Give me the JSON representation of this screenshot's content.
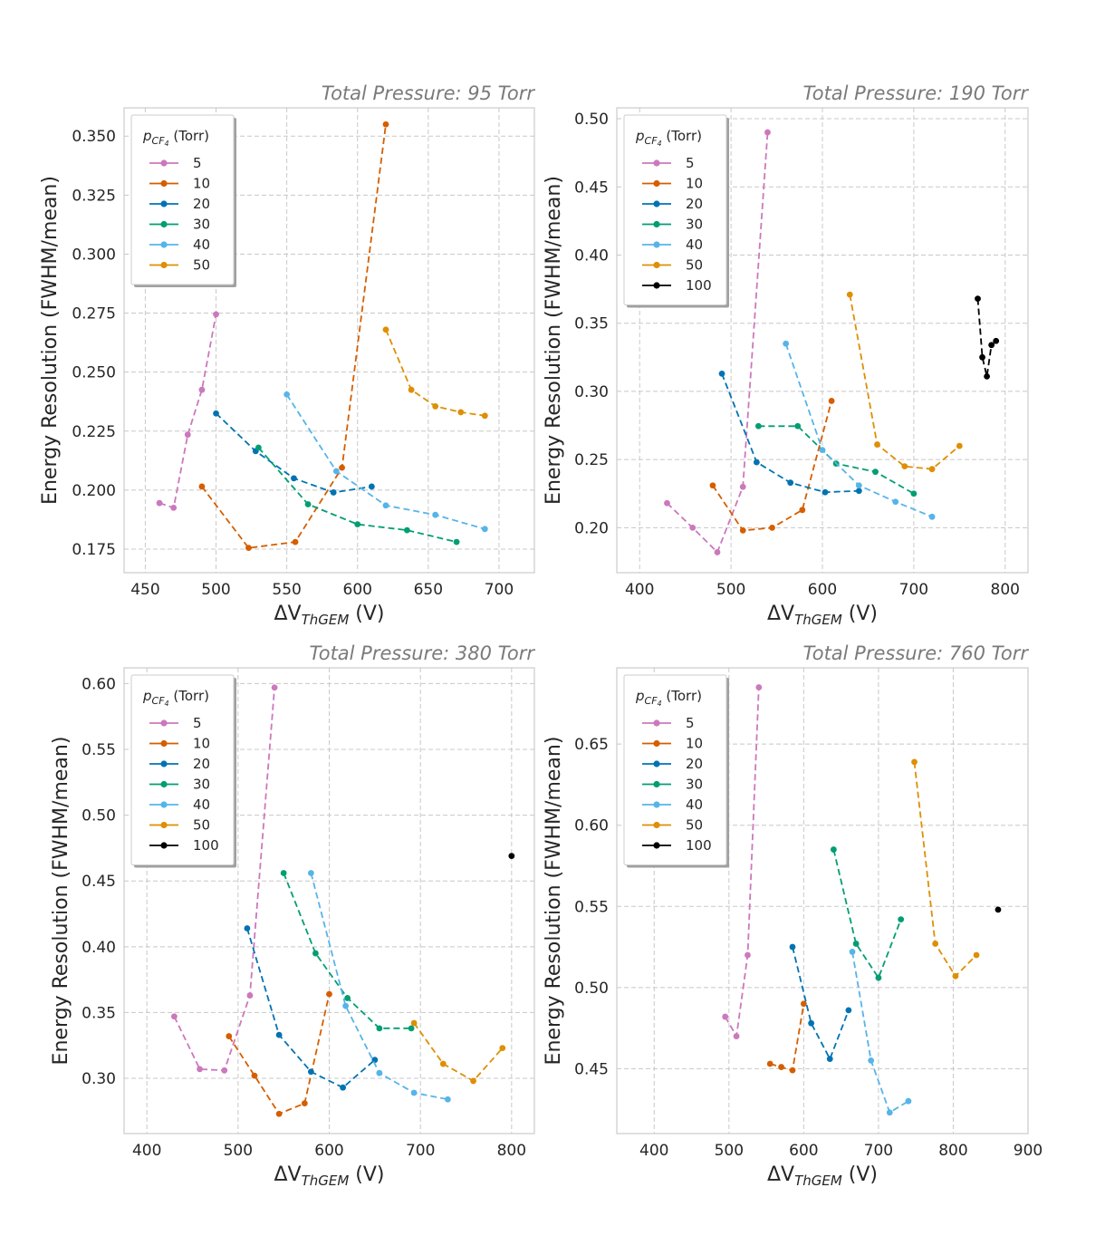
{
  "chart_data": [
    {
      "type": "line",
      "title": "Total Pressure: 95 Torr",
      "xlabel": "ΔV",
      "xlabel_sub": "ThGEM",
      "xlabel_unit": " (V)",
      "ylabel": "Energy Resolution (FWHM/mean)",
      "xlim": [
        435,
        725
      ],
      "ylim": [
        0.165,
        0.362
      ],
      "xticks": [
        450,
        500,
        550,
        600,
        650,
        700
      ],
      "yticks": [
        0.175,
        0.2,
        0.225,
        0.25,
        0.275,
        0.3,
        0.325,
        0.35
      ],
      "ytick_labels": [
        "0.175",
        "0.200",
        "0.225",
        "0.250",
        "0.275",
        "0.300",
        "0.325",
        "0.350"
      ],
      "legend_title": "p",
      "legend_title_sub": "CF",
      "legend_title_subsub": "4",
      "legend_title_unit": " (Torr)",
      "legend_location": "upper-left",
      "series": [
        {
          "name": "5",
          "color": "#cc78bc",
          "x": [
            460,
            470,
            480,
            490,
            500
          ],
          "y": [
            0.1945,
            0.1925,
            0.2235,
            0.2425,
            0.2745
          ]
        },
        {
          "name": "10",
          "color": "#d55e00",
          "x": [
            490,
            523,
            556,
            589,
            620
          ],
          "y": [
            0.2015,
            0.1755,
            0.178,
            0.2095,
            0.355
          ]
        },
        {
          "name": "20",
          "color": "#0173b2",
          "x": [
            500,
            528,
            555,
            583,
            610
          ],
          "y": [
            0.2325,
            0.2165,
            0.205,
            0.199,
            0.2015
          ]
        },
        {
          "name": "30",
          "color": "#029e73",
          "x": [
            530,
            565,
            600,
            635,
            670
          ],
          "y": [
            0.218,
            0.194,
            0.1855,
            0.183,
            0.178
          ]
        },
        {
          "name": "40",
          "color": "#56b4e9",
          "x": [
            550,
            585,
            620,
            655,
            690
          ],
          "y": [
            0.2405,
            0.208,
            0.1935,
            0.1895,
            0.1835
          ]
        },
        {
          "name": "50",
          "color": "#de8f05",
          "x": [
            620,
            638,
            655,
            673,
            690
          ],
          "y": [
            0.268,
            0.2425,
            0.2355,
            0.233,
            0.2315
          ]
        }
      ]
    },
    {
      "type": "line",
      "title": "Total Pressure: 190 Torr",
      "xlabel": "ΔV",
      "xlabel_sub": "ThGEM",
      "xlabel_unit": " (V)",
      "ylabel": "Energy Resolution (FWHM/mean)",
      "xlim": [
        375,
        825
      ],
      "ylim": [
        0.167,
        0.508
      ],
      "xticks": [
        400,
        500,
        600,
        700,
        800
      ],
      "yticks": [
        0.2,
        0.25,
        0.3,
        0.35,
        0.4,
        0.45,
        0.5
      ],
      "ytick_labels": [
        "0.20",
        "0.25",
        "0.30",
        "0.35",
        "0.40",
        "0.45",
        "0.50"
      ],
      "legend_title": "p",
      "legend_title_sub": "CF",
      "legend_title_subsub": "4",
      "legend_title_unit": " (Torr)",
      "legend_location": "upper-left",
      "series": [
        {
          "name": "5",
          "color": "#cc78bc",
          "x": [
            430,
            458,
            485,
            513,
            540
          ],
          "y": [
            0.218,
            0.2,
            0.182,
            0.23,
            0.49
          ]
        },
        {
          "name": "10",
          "color": "#d55e00",
          "x": [
            480,
            513,
            545,
            578,
            610
          ],
          "y": [
            0.231,
            0.198,
            0.2,
            0.213,
            0.293
          ]
        },
        {
          "name": "20",
          "color": "#0173b2",
          "x": [
            490,
            528,
            565,
            603,
            640
          ],
          "y": [
            0.313,
            0.248,
            0.233,
            0.226,
            0.227
          ]
        },
        {
          "name": "30",
          "color": "#029e73",
          "x": [
            530,
            573,
            615,
            658,
            700
          ],
          "y": [
            0.2745,
            0.2745,
            0.247,
            0.241,
            0.225
          ]
        },
        {
          "name": "40",
          "color": "#56b4e9",
          "x": [
            560,
            600,
            640,
            680,
            720
          ],
          "y": [
            0.335,
            0.257,
            0.231,
            0.219,
            0.208
          ]
        },
        {
          "name": "50",
          "color": "#de8f05",
          "x": [
            630,
            660,
            690,
            720,
            750
          ],
          "y": [
            0.371,
            0.261,
            0.245,
            0.243,
            0.26
          ]
        },
        {
          "name": "100",
          "color": "#000000",
          "x": [
            770,
            775,
            780,
            785,
            790
          ],
          "y": [
            0.368,
            0.325,
            0.311,
            0.334,
            0.337
          ]
        }
      ]
    },
    {
      "type": "line",
      "title": "Total Pressure: 380 Torr",
      "xlabel": "ΔV",
      "xlabel_sub": "ThGEM",
      "xlabel_unit": " (V)",
      "ylabel": "Energy Resolution (FWHM/mean)",
      "xlim": [
        375,
        825
      ],
      "ylim": [
        0.258,
        0.612
      ],
      "xticks": [
        400,
        500,
        600,
        700,
        800
      ],
      "yticks": [
        0.3,
        0.35,
        0.4,
        0.45,
        0.5,
        0.55,
        0.6
      ],
      "ytick_labels": [
        "0.30",
        "0.35",
        "0.40",
        "0.45",
        "0.50",
        "0.55",
        "0.60"
      ],
      "legend_title": "p",
      "legend_title_sub": "CF",
      "legend_title_subsub": "4",
      "legend_title_unit": " (Torr)",
      "legend_location": "upper-left",
      "series": [
        {
          "name": "5",
          "color": "#cc78bc",
          "x": [
            430,
            458,
            485,
            513,
            540
          ],
          "y": [
            0.347,
            0.307,
            0.306,
            0.363,
            0.597
          ]
        },
        {
          "name": "10",
          "color": "#d55e00",
          "x": [
            490,
            518,
            545,
            573,
            600
          ],
          "y": [
            0.332,
            0.302,
            0.273,
            0.281,
            0.364
          ]
        },
        {
          "name": "20",
          "color": "#0173b2",
          "x": [
            510,
            545,
            580,
            615,
            650
          ],
          "y": [
            0.414,
            0.333,
            0.305,
            0.293,
            0.314
          ]
        },
        {
          "name": "30",
          "color": "#029e73",
          "x": [
            550,
            585,
            620,
            655,
            690
          ],
          "y": [
            0.456,
            0.395,
            0.361,
            0.338,
            0.338
          ]
        },
        {
          "name": "40",
          "color": "#56b4e9",
          "x": [
            580,
            618,
            655,
            693,
            730
          ],
          "y": [
            0.456,
            0.355,
            0.304,
            0.289,
            0.284
          ]
        },
        {
          "name": "50",
          "color": "#de8f05",
          "x": [
            693,
            725,
            758,
            790
          ],
          "y": [
            0.342,
            0.311,
            0.298,
            0.323
          ]
        },
        {
          "name": "100",
          "color": "#000000",
          "x": [
            800
          ],
          "y": [
            0.469
          ]
        }
      ]
    },
    {
      "type": "line",
      "title": "Total Pressure: 760 Torr",
      "xlabel": "ΔV",
      "xlabel_sub": "ThGEM",
      "xlabel_unit": " (V)",
      "ylabel": "Energy Resolution (FWHM/mean)",
      "xlim": [
        350,
        900
      ],
      "ylim": [
        0.41,
        0.697
      ],
      "xticks": [
        400,
        500,
        600,
        700,
        800,
        900
      ],
      "yticks": [
        0.45,
        0.5,
        0.55,
        0.6,
        0.65
      ],
      "ytick_labels": [
        "0.45",
        "0.50",
        "0.55",
        "0.60",
        "0.65"
      ],
      "legend_title": "p",
      "legend_title_sub": "CF",
      "legend_title_subsub": "4",
      "legend_title_unit": " (Torr)",
      "legend_location": "upper-left",
      "series": [
        {
          "name": "5",
          "color": "#cc78bc",
          "x": [
            495,
            510,
            525,
            540
          ],
          "y": [
            0.482,
            0.47,
            0.52,
            0.685
          ]
        },
        {
          "name": "10",
          "color": "#d55e00",
          "x": [
            555,
            570,
            585,
            600
          ],
          "y": [
            0.453,
            0.451,
            0.449,
            0.49
          ]
        },
        {
          "name": "20",
          "color": "#0173b2",
          "x": [
            585,
            610,
            635,
            660
          ],
          "y": [
            0.525,
            0.478,
            0.456,
            0.486
          ]
        },
        {
          "name": "30",
          "color": "#029e73",
          "x": [
            640,
            670,
            700,
            730
          ],
          "y": [
            0.585,
            0.527,
            0.506,
            0.542
          ]
        },
        {
          "name": "40",
          "color": "#56b4e9",
          "x": [
            665,
            690,
            715,
            740
          ],
          "y": [
            0.522,
            0.455,
            0.423,
            0.43
          ]
        },
        {
          "name": "50",
          "color": "#de8f05",
          "x": [
            748,
            776,
            803,
            831
          ],
          "y": [
            0.639,
            0.527,
            0.507,
            0.52
          ]
        },
        {
          "name": "100",
          "color": "#000000",
          "x": [
            860
          ],
          "y": [
            0.548
          ]
        }
      ]
    }
  ]
}
